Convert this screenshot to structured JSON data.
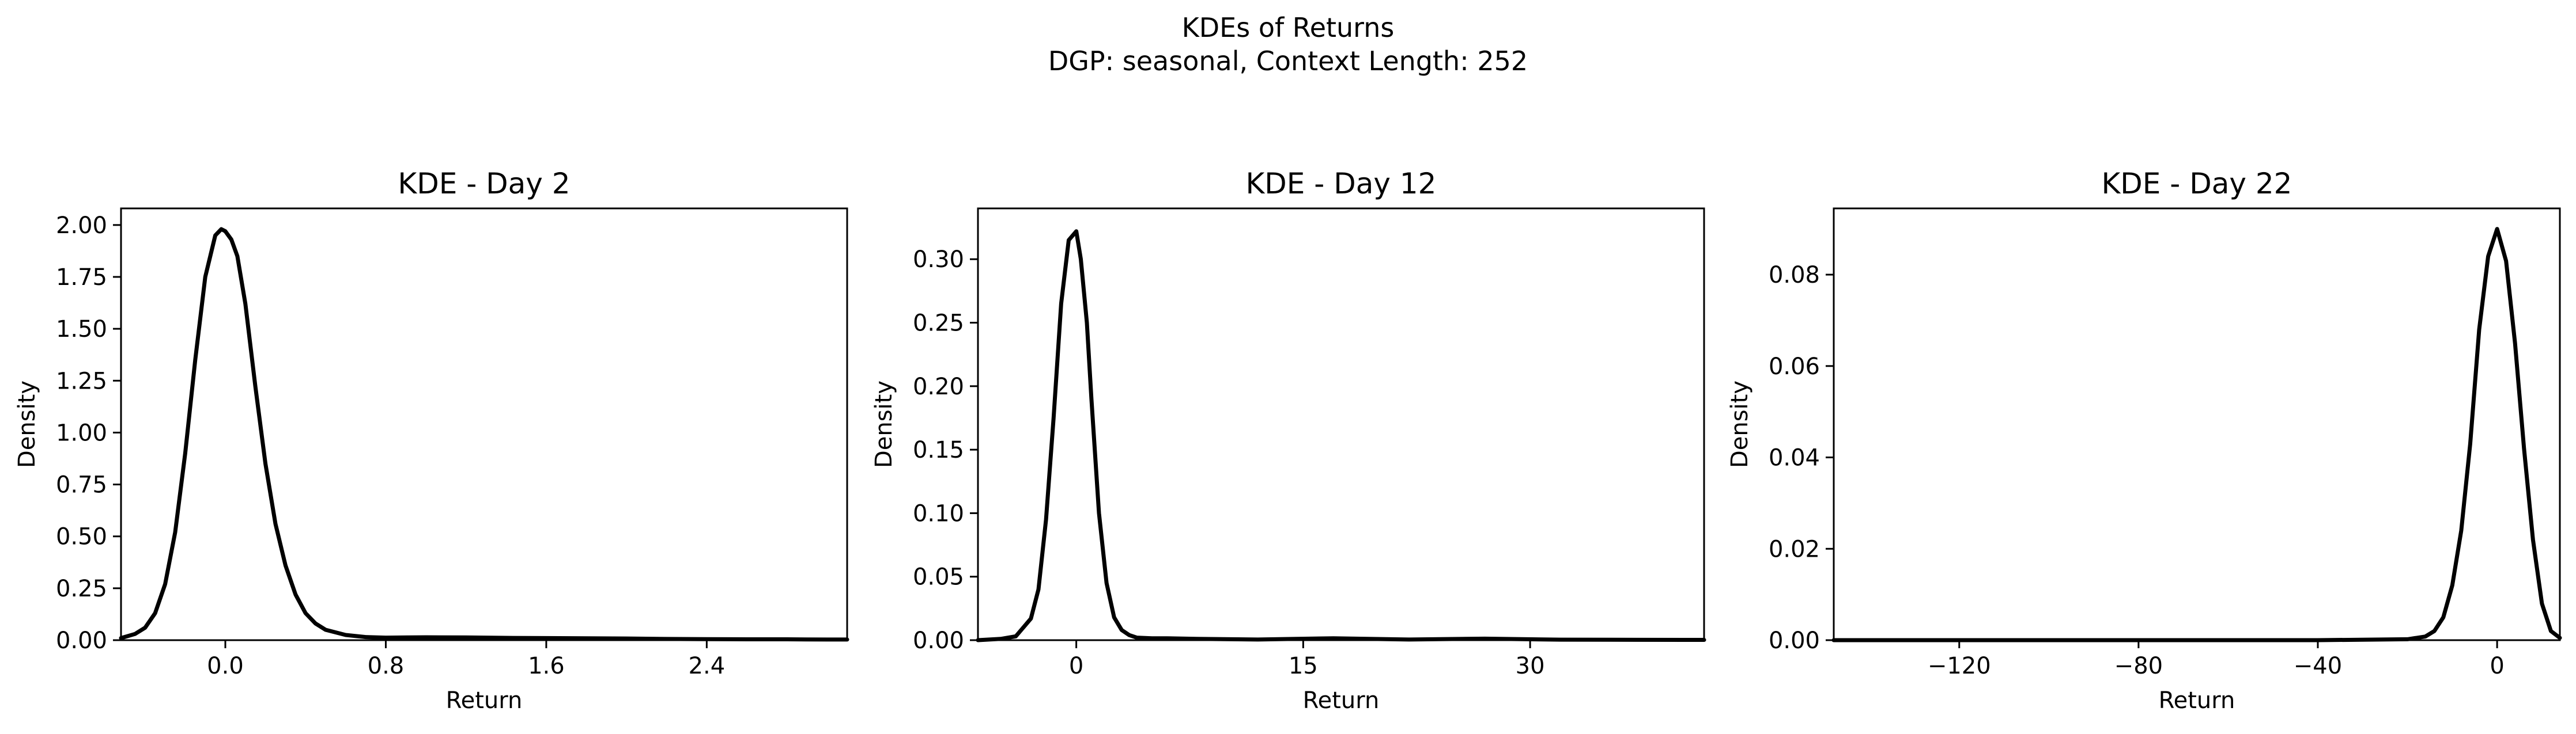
{
  "figure": {
    "title_line1": "KDEs of Returns",
    "title_line2": "DGP: seasonal, Context Length: 252"
  },
  "chart_data": [
    {
      "type": "line",
      "title": "KDE - Day 2",
      "xlabel": "Return",
      "ylabel": "Density",
      "xlim": [
        -0.52,
        3.1
      ],
      "ylim": [
        0,
        2.08
      ],
      "xticks": [
        0.0,
        0.8,
        1.6,
        2.4
      ],
      "xtick_labels": [
        "0.0",
        "0.8",
        "1.6",
        "2.4"
      ],
      "yticks": [
        0.0,
        0.25,
        0.5,
        0.75,
        1.0,
        1.25,
        1.5,
        1.75,
        2.0
      ],
      "ytick_labels": [
        "0.00",
        "0.25",
        "0.50",
        "0.75",
        "1.00",
        "1.25",
        "1.50",
        "1.75",
        "2.00"
      ],
      "grid": false,
      "line_color": "#000000",
      "x": [
        -0.52,
        -0.45,
        -0.4,
        -0.35,
        -0.3,
        -0.25,
        -0.2,
        -0.15,
        -0.1,
        -0.05,
        -0.02,
        0.0,
        0.03,
        0.06,
        0.1,
        0.15,
        0.2,
        0.25,
        0.3,
        0.35,
        0.4,
        0.45,
        0.5,
        0.6,
        0.7,
        0.8,
        0.9,
        1.0,
        1.2,
        1.4,
        1.6,
        1.8,
        2.0,
        2.2,
        2.4,
        2.6,
        2.8,
        3.0,
        3.1
      ],
      "y": [
        0.01,
        0.03,
        0.06,
        0.13,
        0.27,
        0.52,
        0.9,
        1.35,
        1.75,
        1.95,
        1.98,
        1.97,
        1.93,
        1.85,
        1.62,
        1.22,
        0.85,
        0.56,
        0.36,
        0.22,
        0.13,
        0.08,
        0.05,
        0.025,
        0.015,
        0.012,
        0.013,
        0.014,
        0.013,
        0.011,
        0.01,
        0.009,
        0.008,
        0.006,
        0.005,
        0.004,
        0.004,
        0.003,
        0.003
      ]
    },
    {
      "type": "line",
      "title": "KDE - Day 12",
      "xlabel": "Return",
      "ylabel": "Density",
      "xlim": [
        -6.5,
        41.5
      ],
      "ylim": [
        0,
        0.34
      ],
      "xticks": [
        0,
        15,
        30
      ],
      "xtick_labels": [
        "0",
        "15",
        "30"
      ],
      "yticks": [
        0.0,
        0.05,
        0.1,
        0.15,
        0.2,
        0.25,
        0.3
      ],
      "ytick_labels": [
        "0.00",
        "0.05",
        "0.10",
        "0.15",
        "0.20",
        "0.25",
        "0.30"
      ],
      "grid": false,
      "line_color": "#000000",
      "x": [
        -6.5,
        -5.0,
        -4.0,
        -3.0,
        -2.5,
        -2.0,
        -1.5,
        -1.0,
        -0.5,
        0.0,
        0.3,
        0.7,
        1.0,
        1.5,
        2.0,
        2.5,
        3.0,
        3.5,
        4.0,
        5.0,
        6.0,
        8.0,
        12.0,
        17.0,
        22.0,
        27.0,
        32.0,
        37.0,
        41.5
      ],
      "y": [
        0.0,
        0.001,
        0.003,
        0.017,
        0.04,
        0.095,
        0.175,
        0.265,
        0.315,
        0.322,
        0.3,
        0.25,
        0.19,
        0.1,
        0.045,
        0.018,
        0.008,
        0.004,
        0.002,
        0.0015,
        0.0015,
        0.001,
        0.0005,
        0.0015,
        0.0005,
        0.0012,
        0.0004,
        0.0003,
        0.0002
      ]
    },
    {
      "type": "line",
      "title": "KDE - Day 22",
      "xlabel": "Return",
      "ylabel": "Density",
      "xlim": [
        -148,
        14
      ],
      "ylim": [
        0,
        0.0945
      ],
      "xticks": [
        -120,
        -80,
        -40,
        0
      ],
      "xtick_labels": [
        "−120",
        "−80",
        "−40",
        "0"
      ],
      "yticks": [
        0.0,
        0.02,
        0.04,
        0.06,
        0.08
      ],
      "ytick_labels": [
        "0.00",
        "0.02",
        "0.04",
        "0.06",
        "0.08"
      ],
      "grid": false,
      "line_color": "#000000",
      "x": [
        -148,
        -120,
        -80,
        -40,
        -20,
        -16,
        -14,
        -12,
        -10,
        -8,
        -6,
        -4,
        -2,
        0,
        2,
        4,
        6,
        8,
        10,
        12,
        14
      ],
      "y": [
        0.0,
        0.0,
        0.0,
        0.0,
        0.0002,
        0.0008,
        0.002,
        0.005,
        0.012,
        0.024,
        0.043,
        0.068,
        0.084,
        0.09,
        0.083,
        0.065,
        0.042,
        0.022,
        0.008,
        0.002,
        0.0005
      ]
    }
  ]
}
